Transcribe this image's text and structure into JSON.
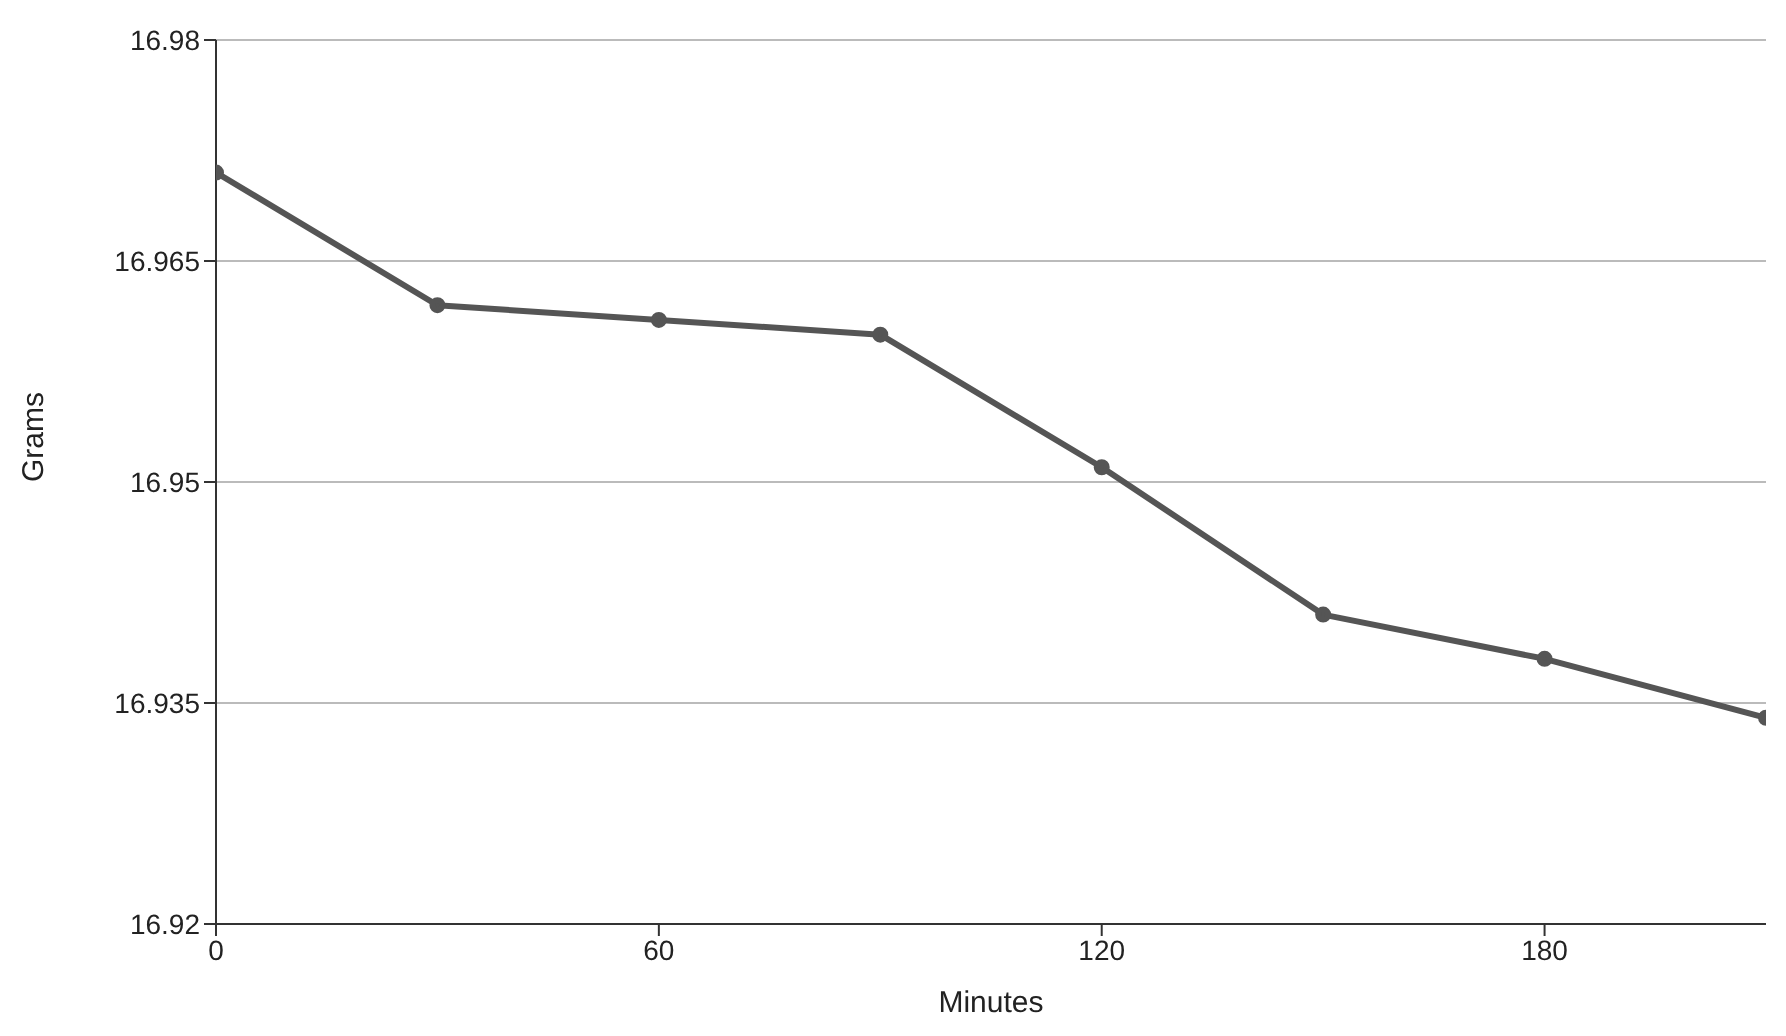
{
  "chart_data": {
    "type": "line",
    "xlabel": "Minutes",
    "ylabel": "Grams",
    "x": [
      0,
      30,
      60,
      90,
      120,
      150,
      180,
      210
    ],
    "series": [
      {
        "color": "#555555",
        "values": [
          16.971,
          16.962,
          16.961,
          16.96,
          16.951,
          16.941,
          16.938,
          16.934
        ]
      }
    ],
    "xlim": [
      0,
      210
    ],
    "xticks": [
      0,
      60,
      120,
      180
    ],
    "ylim": [
      16.92,
      16.98
    ],
    "yticks": [
      16.92,
      16.935,
      16.95,
      16.965,
      16.98
    ],
    "grid": "y",
    "marker": "circle",
    "line_style": "solid",
    "legend": false
  }
}
